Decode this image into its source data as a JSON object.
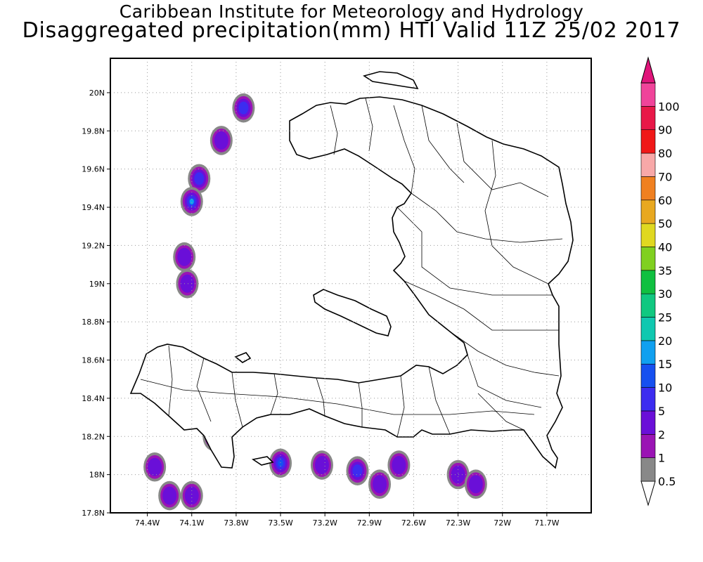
{
  "header": {
    "institute": "Caribbean Institute for Meteorology and Hydrology",
    "product": "Disaggregated precipitation(mm) HTI Valid 11Z 25/02 2017"
  },
  "map": {
    "lon_range": [
      -74.65,
      -71.4
    ],
    "lat_range": [
      17.8,
      20.18
    ],
    "lat_ticks": [
      {
        "value": 20.0,
        "label": "20N"
      },
      {
        "value": 19.8,
        "label": "19.8N"
      },
      {
        "value": 19.6,
        "label": "19.6N"
      },
      {
        "value": 19.4,
        "label": "19.4N"
      },
      {
        "value": 19.2,
        "label": "19.2N"
      },
      {
        "value": 19.0,
        "label": "19N"
      },
      {
        "value": 18.8,
        "label": "18.8N"
      },
      {
        "value": 18.6,
        "label": "18.6N"
      },
      {
        "value": 18.4,
        "label": "18.4N"
      },
      {
        "value": 18.2,
        "label": "18.2N"
      },
      {
        "value": 18.0,
        "label": "18N"
      },
      {
        "value": 17.8,
        "label": "17.8N"
      }
    ],
    "lon_ticks": [
      {
        "value": -74.4,
        "label": "74.4W"
      },
      {
        "value": -74.1,
        "label": "74.1W"
      },
      {
        "value": -73.8,
        "label": "73.8W"
      },
      {
        "value": -73.5,
        "label": "73.5W"
      },
      {
        "value": -73.2,
        "label": "73.2W"
      },
      {
        "value": -72.9,
        "label": "72.9W"
      },
      {
        "value": -72.6,
        "label": "72.6W"
      },
      {
        "value": -72.3,
        "label": "72.3W"
      },
      {
        "value": -72.0,
        "label": "72W"
      },
      {
        "value": -71.7,
        "label": "71.7W"
      }
    ],
    "grid": true
  },
  "colorbar": {
    "levels": [
      {
        "label": "0.5",
        "color": "#888888"
      },
      {
        "label": "1",
        "color": "#9a14b4"
      },
      {
        "label": "2",
        "color": "#6a0fd8"
      },
      {
        "label": "5",
        "color": "#3c2cf0"
      },
      {
        "label": "10",
        "color": "#1650f0"
      },
      {
        "label": "15",
        "color": "#10a0f0"
      },
      {
        "label": "20",
        "color": "#10c8b0"
      },
      {
        "label": "25",
        "color": "#10c880"
      },
      {
        "label": "30",
        "color": "#10c040"
      },
      {
        "label": "35",
        "color": "#80d020"
      },
      {
        "label": "40",
        "color": "#e0d820"
      },
      {
        "label": "50",
        "color": "#e8a820"
      },
      {
        "label": "60",
        "color": "#f08020"
      },
      {
        "label": "70",
        "color": "#f8a8a8"
      },
      {
        "label": "80",
        "color": "#f01818"
      },
      {
        "label": "90",
        "color": "#e81848"
      },
      {
        "label": "100",
        "color": "#f0449a"
      }
    ],
    "top_arrow_color": "#e0147a"
  },
  "rain_areas": [
    {
      "lon": -73.75,
      "lat": 19.92,
      "level": 3
    },
    {
      "lon": -73.9,
      "lat": 19.75,
      "level": 2
    },
    {
      "lon": -74.05,
      "lat": 19.55,
      "level": 3
    },
    {
      "lon": -74.1,
      "lat": 19.43,
      "level": 5
    },
    {
      "lon": -74.15,
      "lat": 19.14,
      "level": 2
    },
    {
      "lon": -74.13,
      "lat": 19.0,
      "level": 2
    },
    {
      "lon": -74.35,
      "lat": 18.04,
      "level": 2
    },
    {
      "lon": -74.25,
      "lat": 17.89,
      "level": 2
    },
    {
      "lon": -74.1,
      "lat": 17.89,
      "level": 2
    },
    {
      "lon": -73.95,
      "lat": 18.2,
      "level": 2
    },
    {
      "lon": -73.5,
      "lat": 18.06,
      "level": 4
    },
    {
      "lon": -73.22,
      "lat": 18.05,
      "level": 2
    },
    {
      "lon": -72.98,
      "lat": 18.02,
      "level": 3
    },
    {
      "lon": -72.83,
      "lat": 17.95,
      "level": 2
    },
    {
      "lon": -72.7,
      "lat": 18.05,
      "level": 2
    },
    {
      "lon": -72.3,
      "lat": 18.0,
      "level": 2
    },
    {
      "lon": -72.18,
      "lat": 17.95,
      "level": 2
    }
  ]
}
